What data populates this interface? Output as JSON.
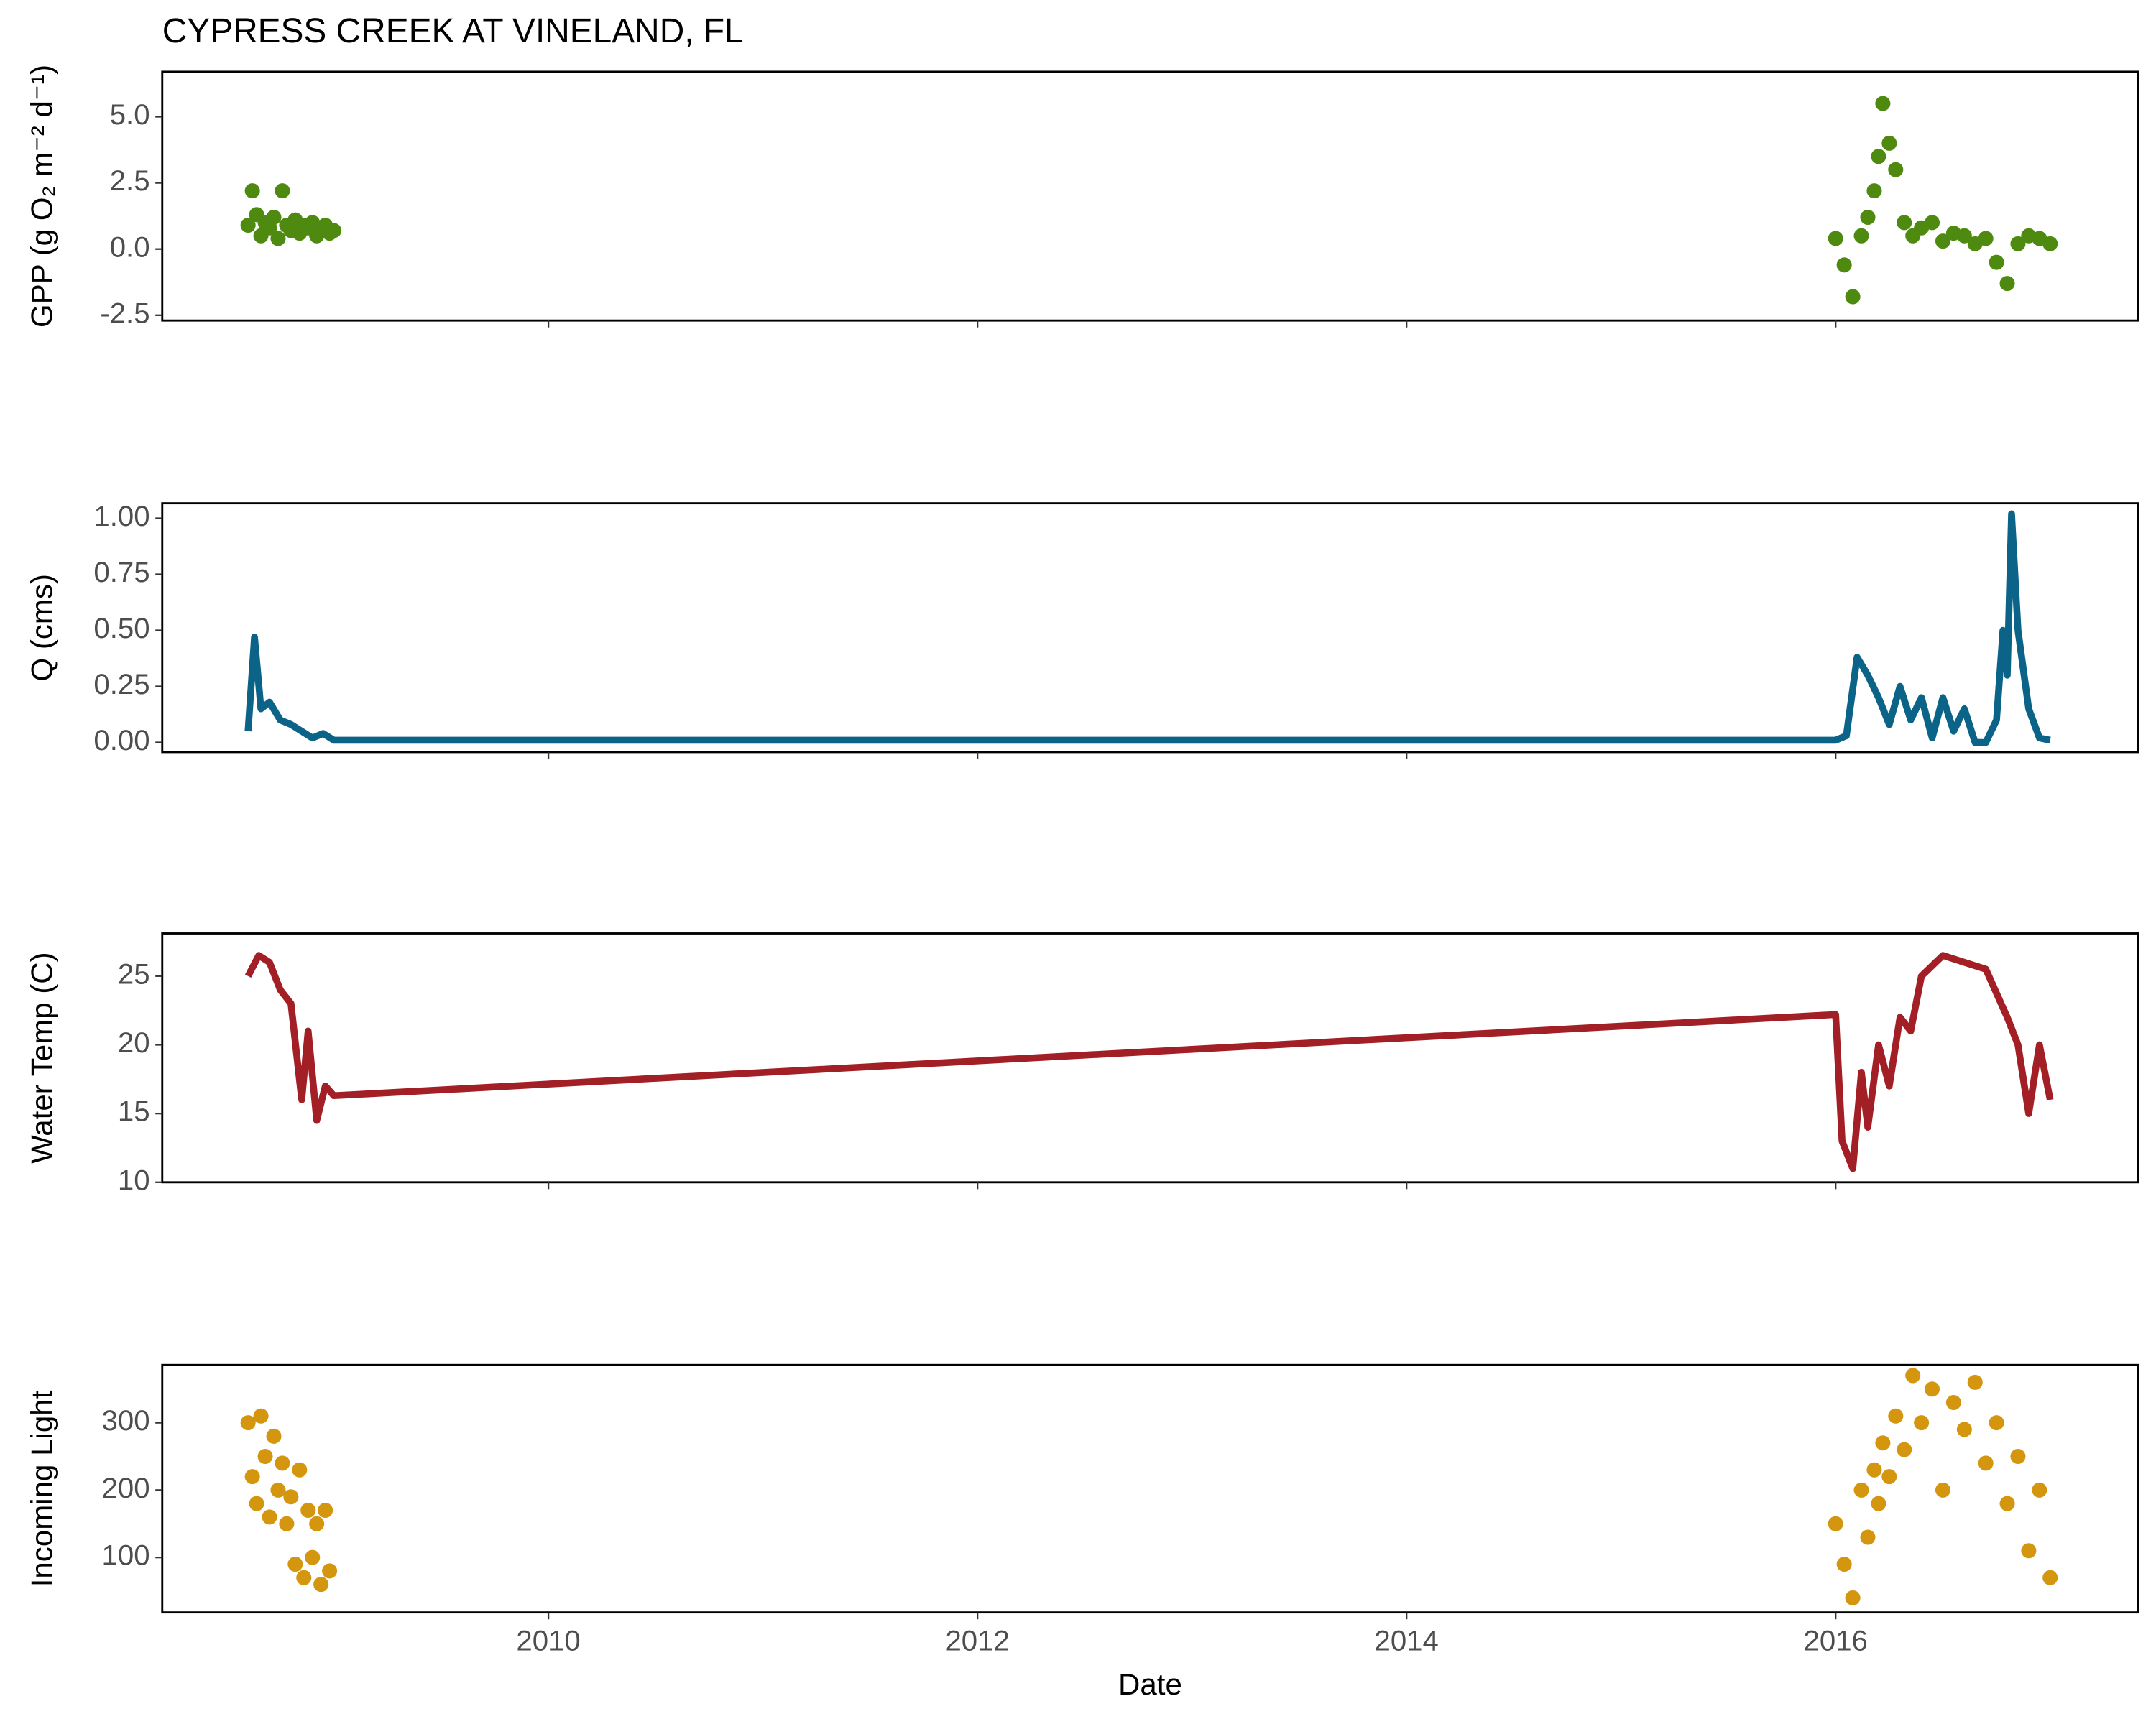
{
  "title": "CYPRESS CREEK AT VINELAND, FL",
  "chart_data": [
    {
      "type": "scatter",
      "ylabel": "GPP (g  O₂ m⁻² d⁻¹)",
      "color": "#4f8a10",
      "x": [
        2008.6,
        2008.62,
        2008.64,
        2008.66,
        2008.68,
        2008.7,
        2008.72,
        2008.74,
        2008.76,
        2008.78,
        2008.8,
        2008.82,
        2008.84,
        2008.86,
        2008.88,
        2008.9,
        2008.92,
        2008.94,
        2008.96,
        2008.98,
        2009.0,
        2016.0,
        2016.04,
        2016.08,
        2016.12,
        2016.15,
        2016.18,
        2016.2,
        2016.22,
        2016.25,
        2016.28,
        2016.32,
        2016.36,
        2016.4,
        2016.45,
        2016.5,
        2016.55,
        2016.6,
        2016.65,
        2016.7,
        2016.75,
        2016.8,
        2016.85,
        2016.9,
        2016.95,
        2017.0
      ],
      "values": [
        0.9,
        2.2,
        1.3,
        0.5,
        1.0,
        0.8,
        1.2,
        0.4,
        2.2,
        0.9,
        0.7,
        1.1,
        0.6,
        0.9,
        0.8,
        1.0,
        0.5,
        0.7,
        0.9,
        0.6,
        0.7,
        0.4,
        -0.6,
        -1.8,
        0.5,
        1.2,
        2.2,
        3.5,
        5.5,
        4.0,
        3.0,
        1.0,
        0.5,
        0.8,
        1.0,
        0.3,
        0.6,
        0.5,
        0.2,
        0.4,
        -0.5,
        -1.3,
        0.2,
        0.5,
        0.4,
        0.2
      ],
      "xlim": [
        2008.2,
        2017.41
      ],
      "xticks": [
        2010,
        2012,
        2014,
        2016
      ],
      "ylim": [
        -2.7,
        6.7
      ],
      "yticks": [
        -2.5,
        {
          "value": 0,
          "label": "0.0"
        },
        2.5,
        {
          "value": 5,
          "label": "5.0"
        }
      ]
    },
    {
      "type": "line",
      "ylabel": "Q (cms)",
      "color": "#0b6388",
      "x": [
        2008.6,
        2008.63,
        2008.66,
        2008.7,
        2008.75,
        2008.8,
        2008.9,
        2008.95,
        2009.0,
        2016.0,
        2016.05,
        2016.1,
        2016.15,
        2016.2,
        2016.25,
        2016.3,
        2016.35,
        2016.4,
        2016.45,
        2016.5,
        2016.55,
        2016.6,
        2016.65,
        2016.7,
        2016.75,
        2016.78,
        2016.8,
        2016.82,
        2016.85,
        2016.9,
        2016.95,
        2017.0
      ],
      "values": [
        0.05,
        0.47,
        0.15,
        0.18,
        0.1,
        0.08,
        0.02,
        0.04,
        0.01,
        0.01,
        0.03,
        0.38,
        0.3,
        0.2,
        0.08,
        0.25,
        0.1,
        0.2,
        0.02,
        0.2,
        0.05,
        0.15,
        0.0,
        0.0,
        0.1,
        0.5,
        0.3,
        1.02,
        0.5,
        0.15,
        0.02,
        0.01
      ],
      "xlim": [
        2008.2,
        2017.41
      ],
      "xticks": [
        2010,
        2012,
        2014,
        2016
      ],
      "ylim": [
        -0.043,
        1.067
      ],
      "yticks": [
        {
          "value": 0,
          "label": "0.00"
        },
        {
          "value": 0.25,
          "label": "0.25"
        },
        {
          "value": 0.5,
          "label": "0.50"
        },
        {
          "value": 0.75,
          "label": "0.75"
        },
        {
          "value": 1,
          "label": "1.00"
        }
      ]
    },
    {
      "type": "line",
      "ylabel": "Water Temp (C)",
      "color": "#a31f26",
      "x": [
        2008.6,
        2008.65,
        2008.7,
        2008.75,
        2008.8,
        2008.85,
        2008.88,
        2008.92,
        2008.96,
        2009.0,
        2016.0,
        2016.03,
        2016.08,
        2016.12,
        2016.15,
        2016.2,
        2016.25,
        2016.3,
        2016.35,
        2016.4,
        2016.5,
        2016.6,
        2016.7,
        2016.8,
        2016.85,
        2016.9,
        2016.95,
        2017.0
      ],
      "values": [
        25,
        26.5,
        26,
        24,
        23,
        16,
        21,
        14.5,
        17,
        16.3,
        22.2,
        13,
        11,
        18,
        14,
        20,
        17,
        22,
        21,
        25,
        26.5,
        26,
        25.5,
        22,
        20,
        15,
        20,
        16
      ],
      "xlim": [
        2008.2,
        2017.41
      ],
      "xticks": [
        2010,
        2012,
        2014,
        2016
      ],
      "ylim": [
        10,
        28.1
      ],
      "yticks": [
        10,
        15,
        20,
        25
      ]
    },
    {
      "type": "scatter",
      "ylabel": "Incoming Light",
      "xlabel": "Date",
      "color": "#d4950f",
      "x": [
        2008.6,
        2008.62,
        2008.64,
        2008.66,
        2008.68,
        2008.7,
        2008.72,
        2008.74,
        2008.76,
        2008.78,
        2008.8,
        2008.82,
        2008.84,
        2008.86,
        2008.88,
        2008.9,
        2008.92,
        2008.94,
        2008.96,
        2008.98,
        2016.0,
        2016.04,
        2016.08,
        2016.12,
        2016.15,
        2016.18,
        2016.2,
        2016.22,
        2016.25,
        2016.28,
        2016.32,
        2016.36,
        2016.4,
        2016.45,
        2016.5,
        2016.55,
        2016.6,
        2016.65,
        2016.7,
        2016.75,
        2016.8,
        2016.85,
        2016.9,
        2016.95,
        2017.0
      ],
      "values": [
        300,
        220,
        180,
        310,
        250,
        160,
        280,
        200,
        240,
        150,
        190,
        90,
        230,
        70,
        170,
        100,
        150,
        60,
        170,
        80,
        150,
        90,
        40,
        200,
        130,
        230,
        180,
        270,
        220,
        310,
        260,
        370,
        300,
        350,
        200,
        330,
        290,
        360,
        240,
        300,
        180,
        250,
        110,
        200,
        70
      ],
      "xlim": [
        2008.2,
        2017.41
      ],
      "xticks": [
        {
          "value": 2010,
          "label": "2010"
        },
        {
          "value": 2012,
          "label": "2012"
        },
        {
          "value": 2014,
          "label": "2014"
        },
        {
          "value": 2016,
          "label": "2016"
        }
      ],
      "ylim": [
        18.4,
        385.7
      ],
      "yticks": [
        100,
        200,
        300
      ]
    }
  ]
}
